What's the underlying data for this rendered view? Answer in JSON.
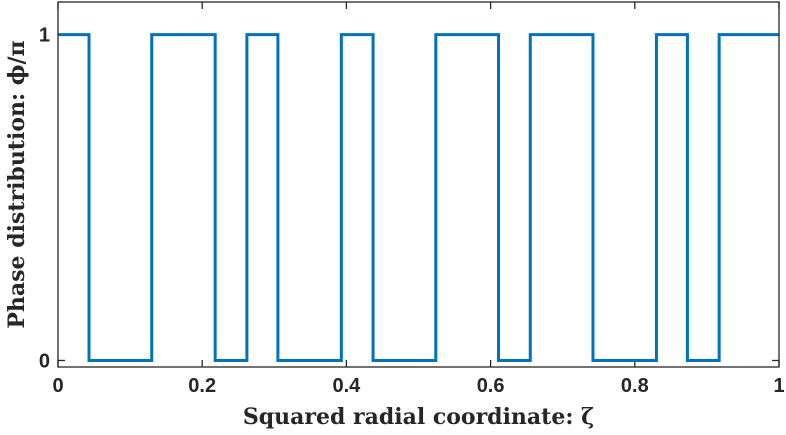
{
  "chart_data": {
    "type": "line",
    "title": "",
    "xlabel": "Squared radial coordinate: ζ",
    "ylabel": "Phase distribution: ϕ/π",
    "xlim": [
      0,
      1
    ],
    "ylim": [
      -0.02,
      1.1
    ],
    "xticks": [
      0,
      0.2,
      0.4,
      0.6,
      0.8,
      1
    ],
    "xtick_labels": [
      "0",
      "0.2",
      "0.4",
      "0.6",
      "0.8",
      "1"
    ],
    "yticks": [
      0,
      1
    ],
    "ytick_labels": [
      "0",
      "1"
    ],
    "grid": false,
    "step": true,
    "series": [
      {
        "color": "#0072BD",
        "x": [
          0,
          0.043,
          0.043,
          0.13,
          0.13,
          0.218,
          0.218,
          0.262,
          0.262,
          0.305,
          0.305,
          0.393,
          0.393,
          0.437,
          0.437,
          0.524,
          0.524,
          0.611,
          0.611,
          0.655,
          0.655,
          0.742,
          0.742,
          0.83,
          0.83,
          0.873,
          0.873,
          0.917,
          0.917,
          1
        ],
        "y": [
          1,
          1,
          0,
          0,
          1,
          1,
          0,
          0,
          1,
          1,
          0,
          0,
          1,
          1,
          0,
          0,
          1,
          1,
          0,
          0,
          1,
          1,
          0,
          0,
          1,
          1,
          0,
          0,
          1,
          1
        ]
      }
    ]
  }
}
